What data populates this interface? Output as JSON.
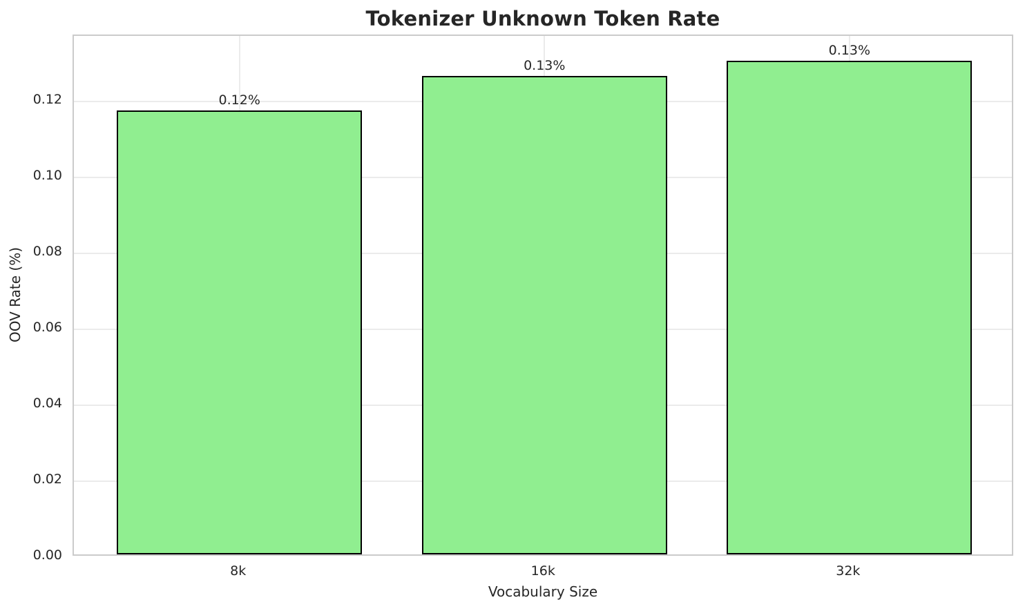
{
  "chart_data": {
    "type": "bar",
    "title": "Tokenizer Unknown Token Rate",
    "xlabel": "Vocabulary Size",
    "ylabel": "OOV Rate (%)",
    "categories": [
      "8k",
      "16k",
      "32k"
    ],
    "values": [
      0.117,
      0.126,
      0.13
    ],
    "bar_labels": [
      "0.12%",
      "0.13%",
      "0.13%"
    ],
    "ylim": [
      0,
      0.1373
    ],
    "yticks": [
      0.0,
      0.02,
      0.04,
      0.06,
      0.08,
      0.1,
      0.12
    ],
    "ytick_labels": [
      "0.00",
      "0.02",
      "0.04",
      "0.06",
      "0.08",
      "0.10",
      "0.12"
    ],
    "grid": true,
    "legend": false,
    "bar_color": "#90EE90",
    "bar_edge_color": "#000000"
  }
}
